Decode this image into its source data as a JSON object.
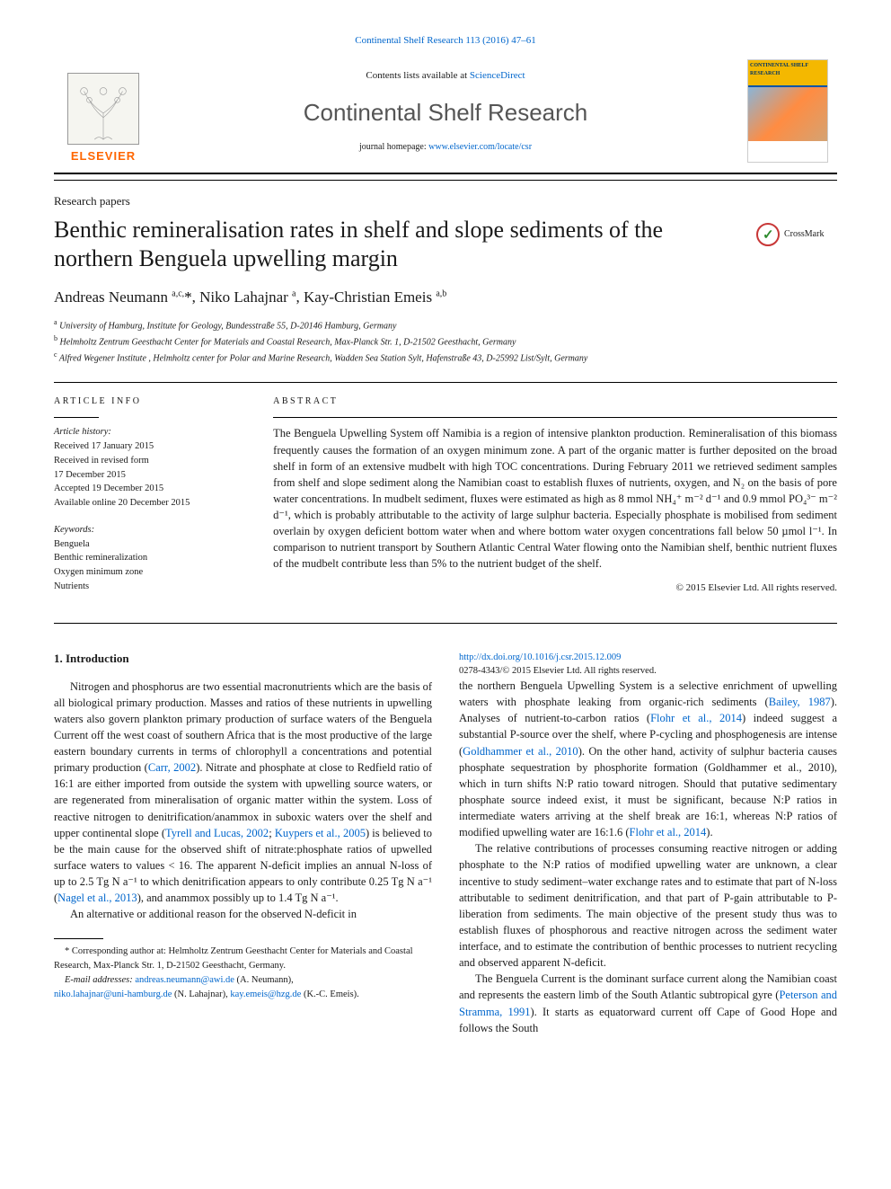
{
  "top_citation": "Continental Shelf Research 113 (2016) 47–61",
  "banner": {
    "publisher": "ELSEVIER",
    "contents_prefix": "Contents lists available at ",
    "contents_link": "ScienceDirect",
    "journal": "Continental Shelf Research",
    "homepage_prefix": "journal homepage: ",
    "homepage_link": "www.elsevier.com/locate/csr",
    "cover_label": "CONTINENTAL SHELF RESEARCH"
  },
  "paper_type": "Research papers",
  "title": "Benthic remineralisation rates in shelf and slope sediments of the northern Benguela upwelling margin",
  "crossmark": "CrossMark",
  "authors_html": "Andreas Neumann <sup>a,c,</sup><span class='star-ref'>*</span>, Niko Lahajnar <sup>a</sup>, Kay-Christian Emeis <sup>a,b</sup>",
  "affiliations": [
    {
      "key": "a",
      "text": "University of Hamburg, Institute for Geology, Bundesstraße 55, D-20146 Hamburg, Germany"
    },
    {
      "key": "b",
      "text": "Helmholtz Zentrum Geesthacht Center for Materials and Coastal Research, Max-Planck Str. 1, D-21502 Geesthacht, Germany"
    },
    {
      "key": "c",
      "text": "Alfred Wegener Institute , Helmholtz center for Polar and Marine Research, Wadden Sea Station Sylt, Hafenstraße 43, D-25992 List/Sylt, Germany"
    }
  ],
  "article_info": {
    "heading": "ARTICLE INFO",
    "history_label": "Article history:",
    "history": [
      "Received 17 January 2015",
      "Received in revised form",
      "17 December 2015",
      "Accepted 19 December 2015",
      "Available online 20 December 2015"
    ],
    "keywords_label": "Keywords:",
    "keywords": [
      "Benguela",
      "Benthic remineralization",
      "Oxygen minimum zone",
      "Nutrients"
    ]
  },
  "abstract": {
    "heading": "ABSTRACT",
    "text": "The Benguela Upwelling System off Namibia is a region of intensive plankton production. Remineralisation of this biomass frequently causes the formation of an oxygen minimum zone. A part of the organic matter is further deposited on the broad shelf in form of an extensive mudbelt with high TOC concentrations. During February 2011 we retrieved sediment samples from shelf and slope sediment along the Namibian coast to establish fluxes of nutrients, oxygen, and N₂ on the basis of pore water concentrations. In mudbelt sediment, fluxes were estimated as high as 8 mmol NH₄⁺ m⁻² d⁻¹ and 0.9 mmol PO₄³⁻ m⁻² d⁻¹, which is probably attributable to the activity of large sulphur bacteria. Especially phosphate is mobilised from sediment overlain by oxygen deficient bottom water when and where bottom water oxygen concentrations fall below 50 µmol l⁻¹. In comparison to nutrient transport by Southern Atlantic Central Water flowing onto the Namibian shelf, benthic nutrient fluxes of the mudbelt contribute less than 5% to the nutrient budget of the shelf.",
    "copyright": "© 2015 Elsevier Ltd. All rights reserved."
  },
  "body": {
    "intro_heading": "1.  Introduction",
    "p1": "Nitrogen and phosphorus are two essential macronutrients which are the basis of all biological primary production. Masses and ratios of these nutrients in upwelling waters also govern plankton primary production of surface waters of the Benguela Current off the west coast of southern Africa that is the most productive of the large eastern boundary currents in terms of chlorophyll a concentrations and potential primary production (",
    "p1_link1": "Carr, 2002",
    "p1b": "). Nitrate and phosphate at close to Redfield ratio of 16:1 are either imported from outside the system with upwelling source waters, or are regenerated from mineralisation of organic matter within the system. Loss of reactive nitrogen to denitrification/anammox in suboxic waters over the shelf and upper continental slope (",
    "p1_link2": "Tyrell and Lucas, 2002",
    "p1c": "; ",
    "p1_link3": "Kuypers et al., 2005",
    "p1d": ") is believed to be the main cause for the observed shift of nitrate:phosphate ratios of upwelled surface waters to values < 16. The apparent N-deficit implies an annual N-loss of up to 2.5 Tg N a⁻¹ to which denitrification appears to only contribute 0.25 Tg N a⁻¹ (",
    "p1_link4": "Nagel et al., 2013",
    "p1e": "), and anammox possibly up to 1.4 Tg N a⁻¹.",
    "p2": "An alternative or additional reason for the observed N-deficit in",
    "p3a": "the northern Benguela Upwelling System is a selective enrichment of upwelling waters with phosphate leaking from organic-rich sediments (",
    "p3_link1": "Bailey, 1987",
    "p3b": "). Analyses of nutrient-to-carbon ratios (",
    "p3_link2": "Flohr et al., 2014",
    "p3c": ") indeed suggest a substantial P-source over the shelf, where P-cycling and phosphogenesis are intense (",
    "p3_link3": "Goldhammer et al., 2010",
    "p3d": "). On the other hand, activity of sulphur bacteria causes phosphate sequestration by phosphorite formation (Goldhammer et al., 2010), which in turn shifts N:P ratio toward nitrogen. Should that putative sedimentary phosphate source indeed exist, it must be significant, because N:P ratios in intermediate waters arriving at the shelf break are 16:1, whereas N:P ratios of modified upwelling water are 16:1.6 (",
    "p3_link4": "Flohr et al., 2014",
    "p3e": ").",
    "p4": "The relative contributions of processes consuming reactive nitrogen or adding phosphate to the N:P ratios of modified upwelling water are unknown, a clear incentive to study sediment–water exchange rates and to estimate that part of N-loss attributable to sediment denitrification, and that part of P-gain attributable to P-liberation from sediments. The main objective of the present study thus was to establish fluxes of phosphorous and reactive nitrogen across the sediment water interface, and to estimate the contribution of benthic processes to nutrient recycling and observed apparent N-deficit.",
    "p5a": "The Benguela Current is the dominant surface current along the Namibian coast and represents the eastern limb of the South Atlantic subtropical gyre (",
    "p5_link1": "Peterson and Stramma, 1991",
    "p5b": "). It starts as equatorward current off Cape of Good Hope and follows the South"
  },
  "footnotes": {
    "corr_label": "* Corresponding author at: Helmholtz Zentrum Geesthacht Center for Materials and Coastal Research, Max-Planck Str. 1, D-21502 Geesthacht, Germany.",
    "email_label": "E-mail addresses: ",
    "emails": [
      {
        "addr": "andreas.neumann@awi.de",
        "who": " (A. Neumann),"
      },
      {
        "addr": "niko.lahajnar@uni-hamburg.de",
        "who": " (N. Lahajnar), "
      },
      {
        "addr": "kay.emeis@hzg.de",
        "who": " (K.-C. Emeis)."
      }
    ],
    "doi": "http://dx.doi.org/10.1016/j.csr.2015.12.009",
    "issn_line": "0278-4343/© 2015 Elsevier Ltd. All rights reserved."
  },
  "colors": {
    "link": "#0066cc",
    "elsevier": "#ff6600"
  }
}
